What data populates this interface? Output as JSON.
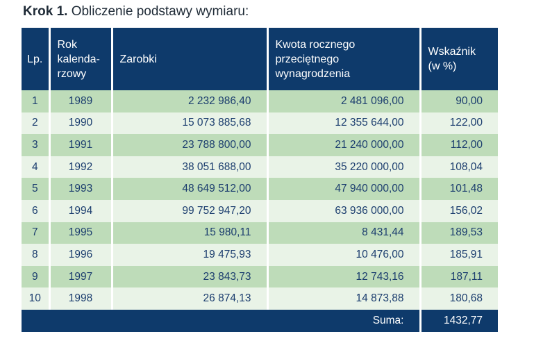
{
  "heading": {
    "bold": "Krok 1.",
    "text": " Obliczenie podstawy wymiaru:"
  },
  "table": {
    "headers": {
      "lp": "Lp.",
      "year_line1": "Rok",
      "year_line2": "kalenda-",
      "year_line3": "rzowy",
      "earnings": "Zarobki",
      "avg_line1": "Kwota rocznego",
      "avg_line2": "przeciętnego",
      "avg_line3": "wynagrodzenia",
      "ratio_line1": "Wskaźnik",
      "ratio_line2": "(w %)"
    },
    "rows": [
      {
        "lp": "1",
        "year": "1989",
        "earnings": "2 232 986,40",
        "avg": "2 481 096,00",
        "ratio": "90,00"
      },
      {
        "lp": "2",
        "year": "1990",
        "earnings": "15 073 885,68",
        "avg": "12 355 644,00",
        "ratio": "122,00"
      },
      {
        "lp": "3",
        "year": "1991",
        "earnings": "23 788 800,00",
        "avg": "21 240 000,00",
        "ratio": "112,00"
      },
      {
        "lp": "4",
        "year": "1992",
        "earnings": "38 051 688,00",
        "avg": "35 220 000,00",
        "ratio": "108,04"
      },
      {
        "lp": "5",
        "year": "1993",
        "earnings": "48 649 512,00",
        "avg": "47 940 000,00",
        "ratio": "101,48"
      },
      {
        "lp": "6",
        "year": "1994",
        "earnings": "99 752 947,20",
        "avg": "63 936 000,00",
        "ratio": "156,02"
      },
      {
        "lp": "7",
        "year": "1995",
        "earnings": "15 980,11",
        "avg": "8 431,44",
        "ratio": "189,53"
      },
      {
        "lp": "8",
        "year": "1996",
        "earnings": "19 475,93",
        "avg": "10 476,00",
        "ratio": "185,91"
      },
      {
        "lp": "9",
        "year": "1997",
        "earnings": "23 843,73",
        "avg": "12 743,16",
        "ratio": "187,11"
      },
      {
        "lp": "10",
        "year": "1998",
        "earnings": "26 874,13",
        "avg": "14 873,88",
        "ratio": "180,68"
      }
    ],
    "footer": {
      "label": "Suma:",
      "value": "1432,77"
    }
  },
  "colors": {
    "header_bg": "#0e3a6b",
    "row_odd": "#bedcb9",
    "row_even": "#e9f3e7",
    "text": "#1b3d6e"
  }
}
